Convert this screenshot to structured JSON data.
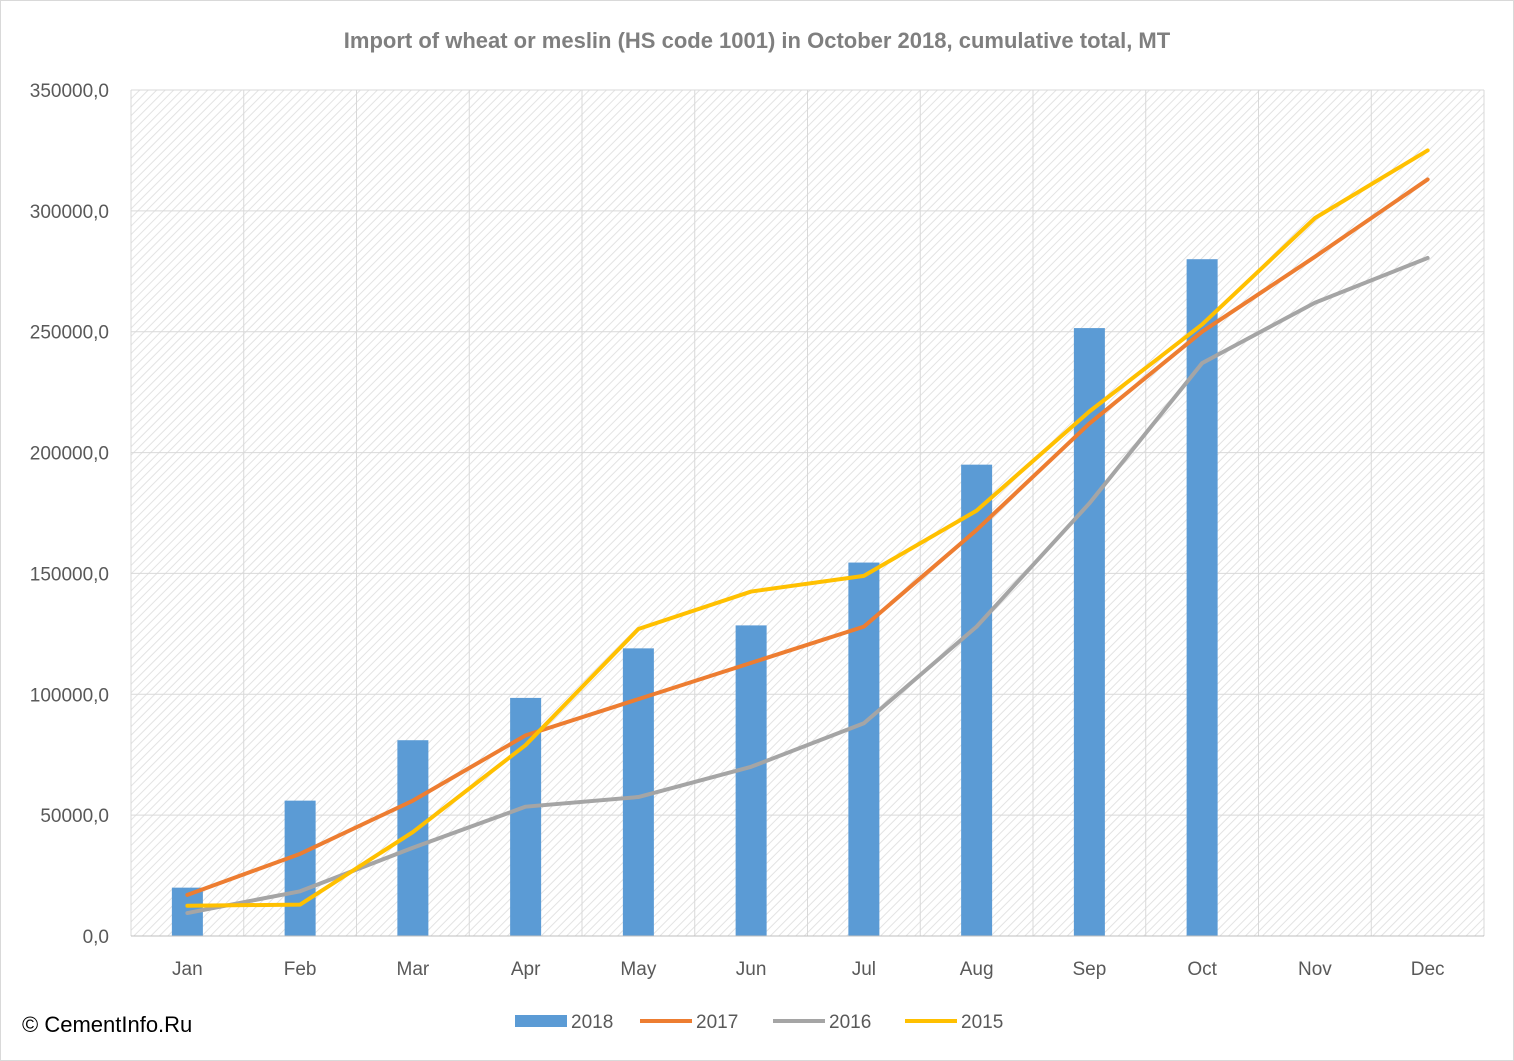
{
  "chart_data": {
    "type": "bar+line",
    "title": "Import of wheat or meslin (HS code 1001) in October 2018, cumulative total, MT",
    "categories": [
      "Jan",
      "Feb",
      "Mar",
      "Apr",
      "May",
      "Jun",
      "Jul",
      "Aug",
      "Sep",
      "Oct",
      "Nov",
      "Dec"
    ],
    "y_ticks": [
      "0,0",
      "50000,0",
      "100000,0",
      "150000,0",
      "200000,0",
      "250000,0",
      "300000,0",
      "350000,0"
    ],
    "ylim": [
      0,
      350000
    ],
    "grid": true,
    "legend_position": "bottom",
    "series": [
      {
        "name": "2018",
        "kind": "bar",
        "color": "#5b9bd5",
        "values": [
          20000,
          56000,
          81000,
          98500,
          119000,
          128500,
          154500,
          195000,
          251500,
          280000,
          null,
          null
        ]
      },
      {
        "name": "2017",
        "kind": "line",
        "color": "#ed7d31",
        "values": [
          17000,
          34000,
          56000,
          83000,
          98000,
          113000,
          128000,
          168000,
          212000,
          250000,
          281000,
          313000
        ]
      },
      {
        "name": "2016",
        "kind": "line",
        "color": "#a5a5a5",
        "values": [
          9500,
          18500,
          36500,
          53500,
          57500,
          70000,
          88000,
          128000,
          179000,
          237000,
          262000,
          280500
        ]
      },
      {
        "name": "2015",
        "kind": "line",
        "color": "#ffc000",
        "values": [
          12500,
          13000,
          43000,
          79000,
          127000,
          142500,
          149000,
          176000,
          217000,
          253000,
          297000,
          325000
        ]
      }
    ]
  },
  "footer": {
    "copyright": "© CementInfo.Ru"
  }
}
